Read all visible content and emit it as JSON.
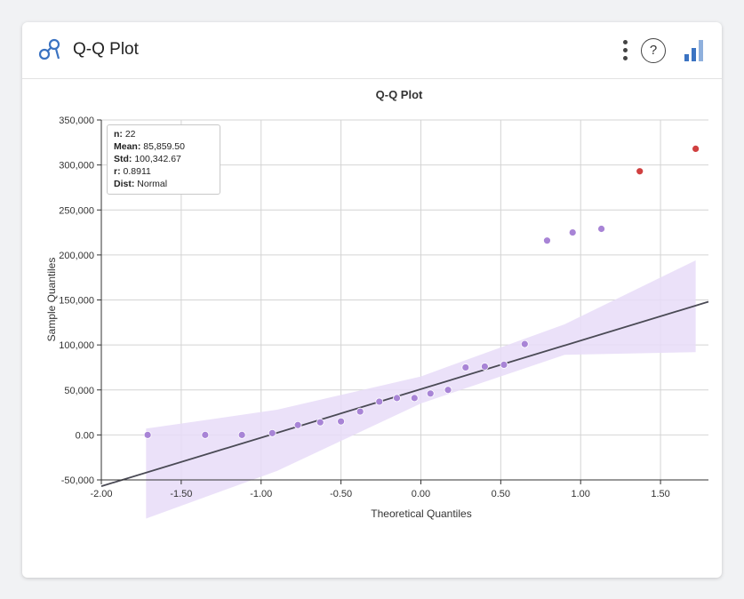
{
  "header": {
    "title": "Q-Q Plot",
    "help_label": "?"
  },
  "colors": {
    "accent": "#3b73c2",
    "point": "#a884d6",
    "outlier": "#d04040",
    "band": "#e7dcf8",
    "line": "#4a4a55"
  },
  "stats": {
    "n_label": "n:",
    "n": "22",
    "mean_label": "Mean:",
    "mean": "85,859.50",
    "std_label": "Std:",
    "std": "100,342.67",
    "r_label": "r:",
    "r": "0.8911",
    "dist_label": "Dist:",
    "dist": "Normal"
  },
  "chart_data": {
    "type": "scatter",
    "title": "Q-Q Plot",
    "xlabel": "Theoretical Quantiles",
    "ylabel": "Sample Quantiles",
    "xlim": [
      -2.0,
      1.8
    ],
    "ylim": [
      -50000,
      350000
    ],
    "x_ticks": [
      -2.0,
      -1.5,
      -1.0,
      -0.5,
      0.0,
      0.5,
      1.0,
      1.5
    ],
    "x_tick_labels": [
      "-2.00",
      "-1.50",
      "-1.00",
      "-0.50",
      "0.00",
      "0.50",
      "1.00",
      "1.50"
    ],
    "y_ticks": [
      -50000,
      0,
      50000,
      100000,
      150000,
      200000,
      250000,
      300000,
      350000
    ],
    "y_tick_labels": [
      "-50,000",
      "0.00",
      "50,000",
      "100,000",
      "150,000",
      "200,000",
      "250,000",
      "300,000",
      "350,000"
    ],
    "grid": true,
    "points": [
      {
        "x": -1.71,
        "y": 0
      },
      {
        "x": -1.35,
        "y": 0
      },
      {
        "x": -1.12,
        "y": 0
      },
      {
        "x": -0.93,
        "y": 2000
      },
      {
        "x": -0.77,
        "y": 11000
      },
      {
        "x": -0.63,
        "y": 14000
      },
      {
        "x": -0.5,
        "y": 15000
      },
      {
        "x": -0.38,
        "y": 26000
      },
      {
        "x": -0.26,
        "y": 37000
      },
      {
        "x": -0.15,
        "y": 41000
      },
      {
        "x": -0.04,
        "y": 41000
      },
      {
        "x": 0.06,
        "y": 46000
      },
      {
        "x": 0.17,
        "y": 50000
      },
      {
        "x": 0.28,
        "y": 75000
      },
      {
        "x": 0.4,
        "y": 76000
      },
      {
        "x": 0.52,
        "y": 78000
      },
      {
        "x": 0.65,
        "y": 101000
      },
      {
        "x": 0.79,
        "y": 216000
      },
      {
        "x": 0.95,
        "y": 225000
      },
      {
        "x": 1.13,
        "y": 229000
      },
      {
        "x": 1.37,
        "y": 293000,
        "outlier": true
      },
      {
        "x": 1.72,
        "y": 318000,
        "outlier": true
      }
    ],
    "fit_line": {
      "x": [
        -2.0,
        1.8
      ],
      "y": [
        -57000,
        148000
      ]
    },
    "confidence_band": {
      "x": [
        -1.72,
        -0.9,
        0.0,
        0.9,
        1.72
      ],
      "lower": [
        -93000,
        -40000,
        35000,
        89000,
        92000
      ],
      "upper": [
        7000,
        28000,
        65000,
        123000,
        194000
      ]
    }
  }
}
